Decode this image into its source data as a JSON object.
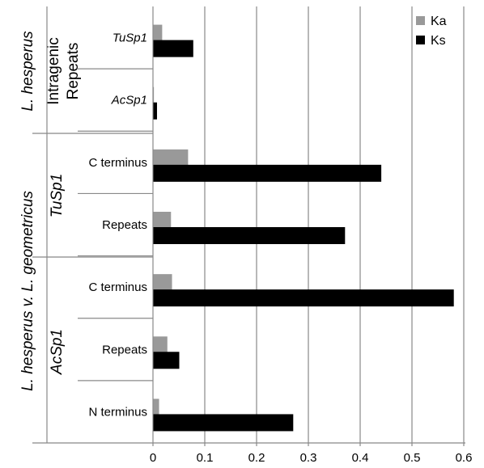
{
  "chart_data": {
    "type": "bar",
    "orientation": "horizontal",
    "categories": [
      "TuSp1",
      "AcSp1",
      "C terminus",
      "Repeats",
      "C terminus",
      "Repeats",
      "N terminus"
    ],
    "category_italic": [
      true,
      true,
      false,
      false,
      false,
      false,
      false
    ],
    "series": [
      {
        "name": "Ka",
        "color": "#999999",
        "values": [
          0.017,
          0.001,
          0.067,
          0.034,
          0.036,
          0.027,
          0.011
        ]
      },
      {
        "name": "Ks",
        "color": "#000000",
        "values": [
          0.077,
          0.007,
          0.44,
          0.37,
          0.58,
          0.05,
          0.27
        ]
      }
    ],
    "xlim": [
      0,
      0.6
    ],
    "xticks": [
      "0",
      "0.1",
      "0.2",
      "0.3",
      "0.4",
      "0.5",
      "0.6"
    ],
    "grid": true,
    "legend_position": "top-right",
    "group_labels": {
      "outer_top": "L. hesperus",
      "inner_top": [
        "Intragenic",
        "Repeats"
      ],
      "outer_bottom": "L. hesperus v. L. geometricus",
      "inner_mid": "TuSp1",
      "inner_bottom": "AcSp1"
    }
  }
}
